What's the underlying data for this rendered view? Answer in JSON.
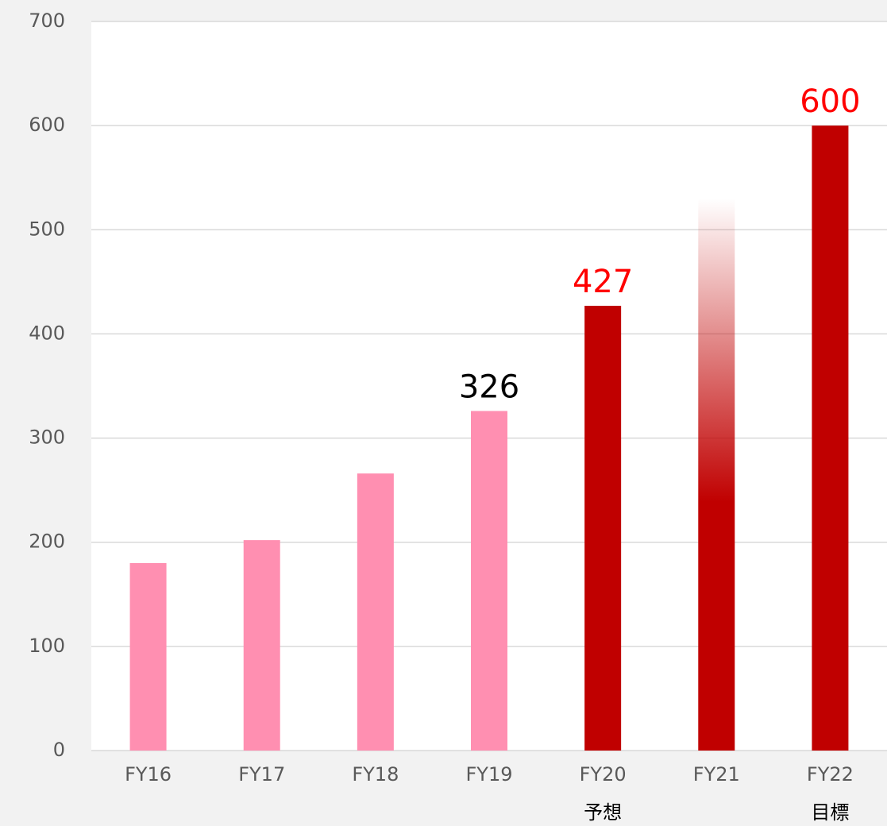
{
  "chart_data": {
    "type": "bar",
    "categories": [
      "FY16",
      "FY17",
      "FY18",
      "FY19",
      "FY20",
      "FY21",
      "FY22"
    ],
    "sublabels": [
      null,
      null,
      null,
      null,
      "予想",
      null,
      "目標"
    ],
    "values": [
      180,
      202,
      266,
      326,
      427,
      530,
      600
    ],
    "colors": [
      "#ff8fb1",
      "#ff8fb1",
      "#ff8fb1",
      "#ff8fb1",
      "#c00000",
      "#c00000",
      "#c00000"
    ],
    "fade": [
      false,
      false,
      false,
      false,
      false,
      true,
      false
    ],
    "label_colors": [
      null,
      null,
      null,
      "#000000",
      "#ff0000",
      null,
      "#ff0000"
    ],
    "ylim": [
      0,
      700
    ],
    "yticks": [
      0,
      100,
      200,
      300,
      400,
      500,
      600,
      700
    ],
    "grid": true
  }
}
